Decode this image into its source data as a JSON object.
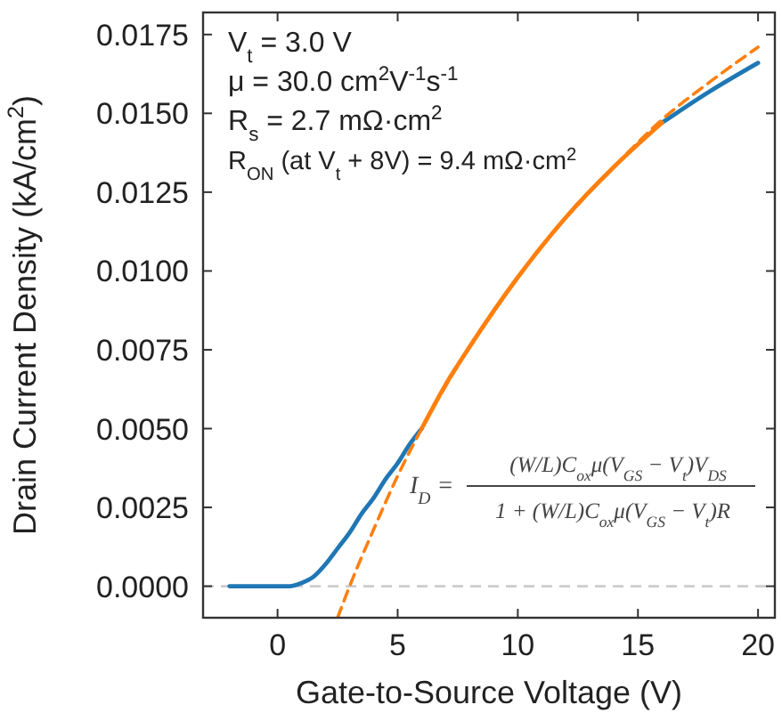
{
  "chart_data": {
    "type": "line",
    "xlabel": "Gate-to-Source Voltage (V)",
    "ylabel": "Drain Current Density (kA/cm$^{2}$)",
    "xlim": [
      -3.1,
      20.7
    ],
    "ylim": [
      -0.001,
      0.0182
    ],
    "xticks": [
      0,
      5,
      10,
      15,
      20
    ],
    "yticks": [
      {
        "value": 0,
        "label": "0.0000"
      },
      {
        "value": 0.0025,
        "label": "0.0025"
      },
      {
        "value": 0.005,
        "label": "0.0050"
      },
      {
        "value": 0.0075,
        "label": "0.0075"
      },
      {
        "value": 0.01,
        "label": "0.0100"
      },
      {
        "value": 0.0125,
        "label": "0.0125"
      },
      {
        "value": 0.015,
        "label": "0.0150"
      },
      {
        "value": 0.0175,
        "label": "0.0175"
      }
    ],
    "series": [
      {
        "color": "#1f77b4",
        "line_style": "solid",
        "x": [
          -2,
          -1,
          0,
          0.5,
          1,
          1.5,
          2,
          2.5,
          3,
          3.5,
          4,
          4.5,
          5,
          5.5,
          6,
          7,
          8,
          10,
          12,
          14,
          16,
          18,
          20
        ],
        "values": [
          0,
          0,
          0,
          0,
          0.0001,
          0.0003,
          0.0007,
          0.0012,
          0.0017,
          0.0023,
          0.0028,
          0.0034,
          0.0039,
          0.0045,
          0.005,
          null,
          null,
          null,
          null,
          null,
          0.0147,
          0.0157,
          0.0166
        ]
      },
      {
        "color": "#ff7f0e",
        "line_style": "dashed",
        "x": [
          2.5,
          3,
          4,
          5,
          6,
          8,
          10,
          12,
          14,
          16,
          18,
          20
        ],
        "values": [
          -0.001,
          0,
          0.0018,
          0.0035,
          0.005,
          0.0076,
          0.0098,
          0.0117,
          0.0133,
          0.0148,
          0.016,
          0.0171
        ]
      },
      {
        "color": "#ff7f0e",
        "line_style": "solid",
        "x": [
          6,
          7,
          8,
          10,
          12,
          14,
          16
        ],
        "values": [
          0.005,
          0.0064,
          0.0076,
          0.0098,
          0.0117,
          0.0133,
          0.0147
        ]
      }
    ],
    "ref_lines": [
      {
        "axis": "y",
        "value": 0,
        "color": "#cccccc",
        "line_style": "dashed"
      }
    ],
    "annotations": [
      "V$_{t}$ = 3.0 V",
      "μ = 30.0 cm$^{2}$V$^{-1}$s$^{-1}$",
      "R$_{s}$ = 2.7 mΩ·cm$^{2}$",
      "R$_{ON}$ (at V$_{t}$ + 8V) = 9.4 mΩ·cm$^{2}$",
      "I$_{D}$ =",
      "(W/L)C$_{ox}$μ(V$_{GS}$ − V$_{t}$)V$_{DS}$",
      "1 + (W/L)C$_{ox}$μ(V$_{GS}$ − V$_{t}$)R"
    ],
    "grid": false
  }
}
